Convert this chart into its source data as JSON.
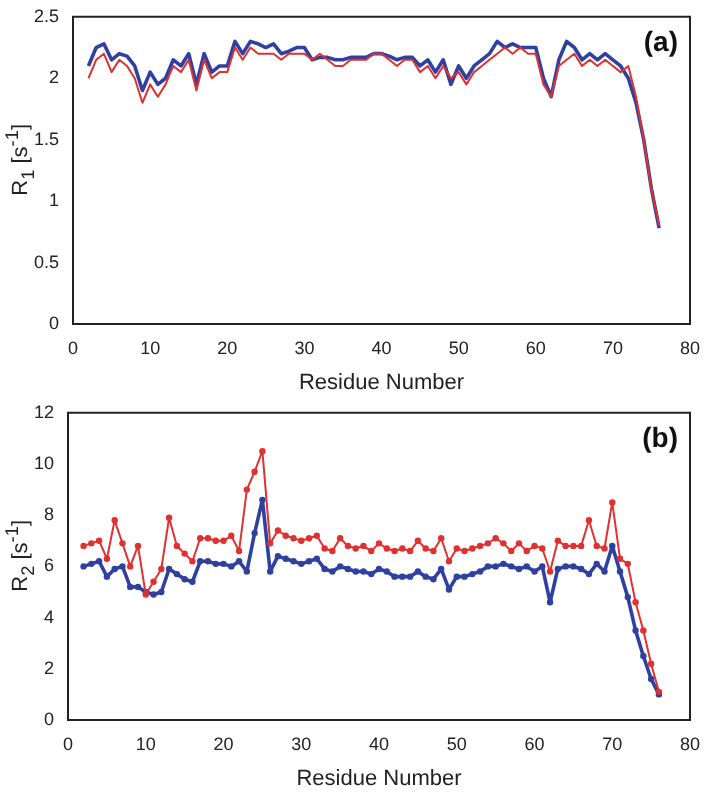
{
  "chart_data": [
    {
      "type": "line",
      "xlabel": "Residue Number",
      "ylabel": "R$_{1}$  [s$^{-1}$]",
      "annotations": [
        "(a)"
      ],
      "xlim": [
        0,
        80
      ],
      "xticks": [
        0,
        10,
        20,
        30,
        40,
        50,
        60,
        70,
        80
      ],
      "ylim": [
        0,
        2.5
      ],
      "yticks": [
        0,
        0.5,
        1,
        1.5,
        2,
        2.5
      ],
      "grid": false,
      "legend": false,
      "marker": "none",
      "x": [
        2,
        3,
        4,
        5,
        6,
        7,
        8,
        9,
        10,
        11,
        12,
        13,
        14,
        15,
        16,
        17,
        18,
        19,
        20,
        21,
        22,
        23,
        24,
        25,
        26,
        27,
        28,
        29,
        30,
        31,
        32,
        33,
        34,
        35,
        36,
        37,
        38,
        39,
        40,
        41,
        42,
        43,
        44,
        45,
        46,
        47,
        48,
        49,
        50,
        51,
        52,
        53,
        54,
        55,
        56,
        57,
        58,
        59,
        60,
        61,
        62,
        63,
        64,
        65,
        66,
        67,
        68,
        69,
        70,
        71,
        72,
        73,
        74,
        75,
        76
      ],
      "series": [
        {
          "color": "#e03030",
          "values": [
            2.0,
            2.15,
            2.2,
            2.05,
            2.15,
            2.1,
            2.0,
            1.8,
            1.95,
            1.85,
            1.95,
            2.1,
            2.05,
            2.15,
            1.9,
            2.15,
            2.0,
            2.05,
            2.05,
            2.25,
            2.15,
            2.25,
            2.2,
            2.2,
            2.2,
            2.15,
            2.2,
            2.2,
            2.2,
            2.15,
            2.2,
            2.15,
            2.1,
            2.1,
            2.15,
            2.15,
            2.15,
            2.2,
            2.2,
            2.15,
            2.1,
            2.15,
            2.15,
            2.05,
            2.1,
            2.0,
            2.1,
            2.0,
            2.05,
            1.95,
            2.05,
            2.1,
            2.15,
            2.2,
            2.25,
            2.2,
            2.25,
            2.2,
            2.2,
            1.95,
            1.85,
            2.1,
            2.15,
            2.2,
            2.1,
            2.15,
            2.1,
            2.15,
            2.1,
            2.05,
            2.1,
            1.85,
            1.5,
            1.1,
            0.8
          ]
        },
        {
          "color": "#3040a0",
          "values": [
            2.1,
            2.25,
            2.28,
            2.15,
            2.2,
            2.18,
            2.1,
            1.9,
            2.05,
            1.95,
            2.0,
            2.15,
            2.1,
            2.2,
            1.95,
            2.2,
            2.05,
            2.1,
            2.1,
            2.3,
            2.2,
            2.3,
            2.28,
            2.25,
            2.28,
            2.2,
            2.22,
            2.25,
            2.25,
            2.15,
            2.17,
            2.17,
            2.15,
            2.15,
            2.17,
            2.17,
            2.17,
            2.2,
            2.2,
            2.18,
            2.15,
            2.17,
            2.17,
            2.1,
            2.15,
            2.05,
            2.15,
            1.95,
            2.1,
            2.0,
            2.1,
            2.15,
            2.2,
            2.3,
            2.25,
            2.28,
            2.25,
            2.25,
            2.25,
            2.0,
            1.85,
            2.15,
            2.3,
            2.25,
            2.15,
            2.2,
            2.15,
            2.2,
            2.15,
            2.1,
            2.0,
            1.8,
            1.5,
            1.1,
            0.78
          ]
        }
      ]
    },
    {
      "type": "line",
      "xlabel": "Residue Number",
      "ylabel": "R$_{2}$  [s$^{-1}$]",
      "annotations": [
        "(b)"
      ],
      "xlim": [
        0,
        80
      ],
      "xticks": [
        0,
        10,
        20,
        30,
        40,
        50,
        60,
        70,
        80
      ],
      "ylim": [
        0,
        12
      ],
      "yticks": [
        0,
        2,
        4,
        6,
        8,
        10,
        12
      ],
      "grid": false,
      "legend": false,
      "marker": "circle",
      "x": [
        2,
        3,
        4,
        5,
        6,
        7,
        8,
        9,
        10,
        11,
        12,
        13,
        14,
        15,
        16,
        17,
        18,
        19,
        20,
        21,
        22,
        23,
        24,
        25,
        26,
        27,
        28,
        29,
        30,
        31,
        32,
        33,
        34,
        35,
        36,
        37,
        38,
        39,
        40,
        41,
        42,
        43,
        44,
        45,
        46,
        47,
        48,
        49,
        50,
        51,
        52,
        53,
        54,
        55,
        56,
        57,
        58,
        59,
        60,
        61,
        62,
        63,
        64,
        65,
        66,
        67,
        68,
        69,
        70,
        71,
        72,
        73,
        74,
        75,
        76
      ],
      "series": [
        {
          "color": "#e03030",
          "values": [
            6.8,
            6.9,
            7.0,
            6.3,
            7.8,
            6.9,
            6.0,
            6.8,
            4.9,
            5.4,
            5.9,
            7.9,
            6.8,
            6.5,
            6.2,
            7.1,
            7.1,
            7.0,
            7.0,
            7.2,
            6.6,
            9.0,
            9.7,
            10.5,
            6.9,
            7.4,
            7.2,
            7.1,
            7.0,
            7.1,
            7.2,
            6.7,
            6.6,
            7.1,
            6.8,
            6.7,
            6.8,
            6.6,
            6.9,
            6.7,
            6.6,
            6.7,
            6.6,
            7.0,
            6.7,
            6.6,
            7.1,
            6.2,
            6.7,
            6.6,
            6.7,
            6.8,
            6.9,
            7.1,
            6.9,
            6.6,
            6.9,
            6.6,
            6.8,
            6.7,
            5.8,
            7.0,
            6.8,
            6.8,
            6.8,
            7.8,
            6.8,
            6.7,
            8.5,
            6.3,
            6.1,
            4.6,
            3.5,
            2.2,
            1.1
          ]
        },
        {
          "color": "#3040a0",
          "values": [
            6.0,
            6.1,
            6.2,
            5.6,
            5.9,
            6.0,
            5.2,
            5.2,
            5.0,
            4.9,
            5.0,
            5.9,
            5.7,
            5.5,
            5.4,
            6.2,
            6.2,
            6.1,
            6.1,
            6.0,
            6.2,
            5.8,
            7.3,
            8.6,
            5.8,
            6.4,
            6.3,
            6.2,
            6.1,
            6.2,
            6.3,
            5.9,
            5.8,
            6.0,
            5.9,
            5.8,
            5.8,
            5.7,
            5.9,
            5.8,
            5.6,
            5.6,
            5.6,
            5.8,
            5.6,
            5.5,
            5.9,
            5.1,
            5.6,
            5.6,
            5.7,
            5.8,
            6.0,
            6.0,
            6.1,
            6.0,
            5.9,
            6.0,
            5.8,
            6.0,
            4.6,
            5.9,
            6.0,
            6.0,
            5.9,
            5.7,
            6.1,
            5.8,
            6.8,
            5.8,
            4.8,
            3.5,
            2.5,
            1.6,
            1.0
          ]
        }
      ]
    }
  ]
}
